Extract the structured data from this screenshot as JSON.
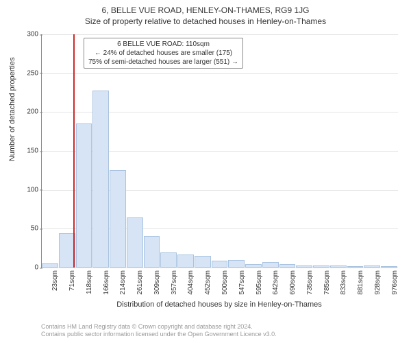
{
  "title_main": "6, BELLE VUE ROAD, HENLEY-ON-THAMES, RG9 1JG",
  "title_sub": "Size of property relative to detached houses in Henley-on-Thames",
  "ylabel": "Number of detached properties",
  "xlabel": "Distribution of detached houses by size in Henley-on-Thames",
  "chart": {
    "type": "bar",
    "ylim": [
      0,
      300
    ],
    "yticks": [
      0,
      50,
      100,
      150,
      200,
      250,
      300
    ],
    "xtick_labels": [
      "23sqm",
      "71sqm",
      "118sqm",
      "166sqm",
      "214sqm",
      "261sqm",
      "309sqm",
      "357sqm",
      "404sqm",
      "452sqm",
      "500sqm",
      "547sqm",
      "595sqm",
      "642sqm",
      "690sqm",
      "735sqm",
      "785sqm",
      "833sqm",
      "881sqm",
      "928sqm",
      "976sqm"
    ],
    "values": [
      5,
      44,
      185,
      228,
      125,
      64,
      41,
      19,
      17,
      15,
      9,
      10,
      4,
      7,
      4,
      3,
      3,
      3,
      2,
      3,
      2
    ],
    "bar_color": "#d6e4f5",
    "bar_border": "#a9c3e0",
    "marker_index": 1.85,
    "marker_color": "#d02828",
    "background_color": "#ffffff",
    "grid_color": "#e5e5e5",
    "axis_color": "#888888",
    "tick_fontsize": 10,
    "label_fontsize": 11
  },
  "info_box": {
    "line1": "6 BELLE VUE ROAD: 110sqm",
    "line2": "← 24% of detached houses are smaller (175)",
    "line3": "75% of semi-detached houses are larger (551) →"
  },
  "footer": {
    "line1": "Contains HM Land Registry data © Crown copyright and database right 2024.",
    "line2": "Contains public sector information licensed under the Open Government Licence v3.0."
  }
}
